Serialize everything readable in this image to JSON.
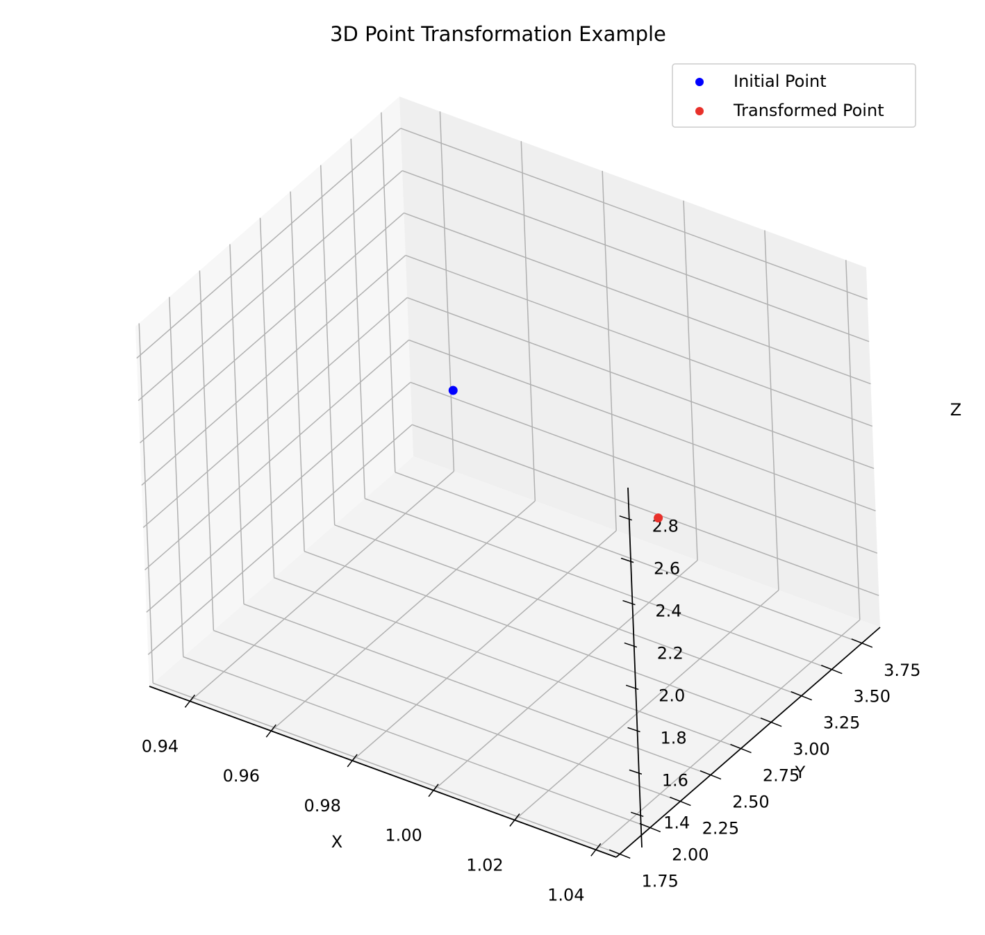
{
  "chart_data": {
    "type": "scatter",
    "projection": "3d",
    "title": "3D Point Transformation Example",
    "xlabel": "X",
    "ylabel": "Y",
    "zlabel": "Z",
    "xlim": [
      0.93,
      1.045
    ],
    "ylim": [
      1.72,
      3.9
    ],
    "zlim": [
      1.25,
      2.95
    ],
    "xticks": [
      0.94,
      0.96,
      0.98,
      1.0,
      1.02,
      1.04
    ],
    "xtick_labels": [
      "0.94",
      "0.96",
      "0.98",
      "1.00",
      "1.02",
      "1.04"
    ],
    "yticks": [
      1.75,
      2.0,
      2.25,
      2.5,
      2.75,
      3.0,
      3.25,
      3.5,
      3.75
    ],
    "ytick_labels": [
      "1.75",
      "2.00",
      "2.25",
      "2.50",
      "2.75",
      "3.00",
      "3.25",
      "3.50",
      "3.75"
    ],
    "zticks": [
      1.4,
      1.6,
      1.8,
      2.0,
      2.2,
      2.4,
      2.6,
      2.8
    ],
    "ztick_labels": [
      "1.4",
      "1.6",
      "1.8",
      "2.0",
      "2.2",
      "2.4",
      "2.6",
      "2.8"
    ],
    "grid": true,
    "legend_position": "top-right",
    "series": [
      {
        "name": "Initial Point",
        "color": "#0000ff",
        "points": [
          {
            "x": 1.0,
            "y": 2.0,
            "z": 3.0
          }
        ]
      },
      {
        "name": "Transformed Point",
        "color": "#e8302a",
        "points": [
          {
            "x": 1.0,
            "y": 3.6,
            "z": 1.6
          }
        ]
      }
    ]
  }
}
